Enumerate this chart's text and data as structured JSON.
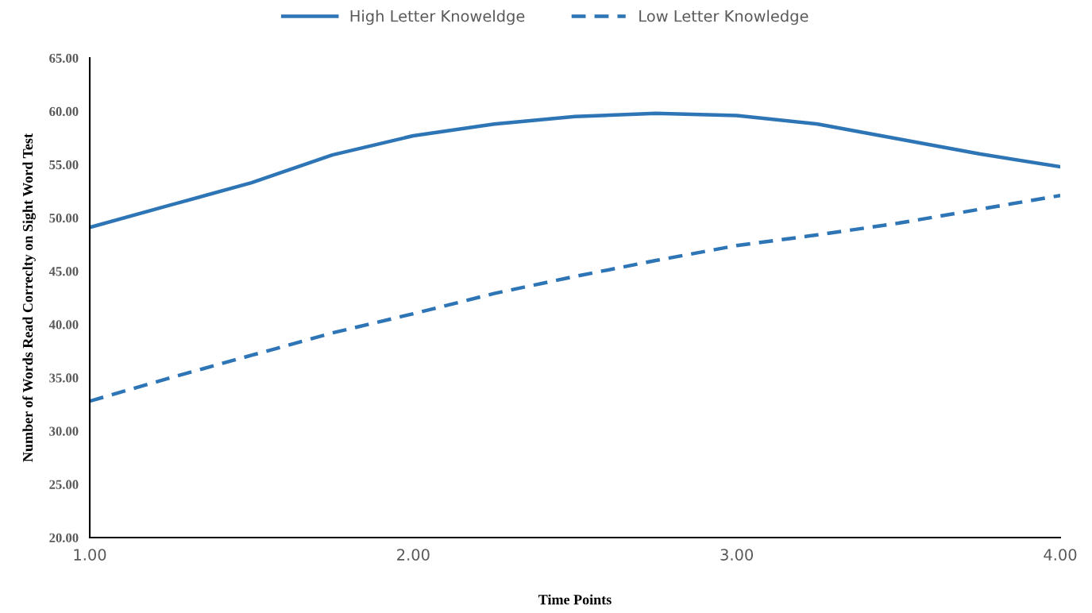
{
  "chart_data": {
    "type": "line",
    "xlabel": "Time Points",
    "ylabel": "Number of Words Read Correclty on Sight Word Test",
    "x": [
      1.0,
      1.25,
      1.5,
      1.75,
      2.0,
      2.25,
      2.5,
      2.75,
      3.0,
      3.25,
      3.5,
      3.75,
      4.0
    ],
    "series": [
      {
        "name": "High Letter Knoweldge",
        "color": "#2e75b6",
        "line_style": "solid",
        "values": [
          49.1,
          51.2,
          53.3,
          55.9,
          57.7,
          58.8,
          59.5,
          59.8,
          59.6,
          58.8,
          57.4,
          56.0,
          54.8
        ]
      },
      {
        "name": "Low Letter Knowledge",
        "color": "#2e75b6",
        "line_style": "dashed",
        "values": [
          32.8,
          35.0,
          37.1,
          39.2,
          41.0,
          42.9,
          44.5,
          46.0,
          47.4,
          48.4,
          49.5,
          50.8,
          52.1
        ]
      }
    ],
    "xlim": [
      1.0,
      4.0
    ],
    "xticks": [
      {
        "value": 1,
        "label": "1.00"
      },
      {
        "value": 2,
        "label": "2.00"
      },
      {
        "value": 3,
        "label": "3.00"
      },
      {
        "value": 4,
        "label": "4.00"
      }
    ],
    "ylim": [
      20,
      65
    ],
    "yticks": [
      {
        "value": 20,
        "label": "20.00"
      },
      {
        "value": 25,
        "label": "25.00"
      },
      {
        "value": 30,
        "label": "30.00"
      },
      {
        "value": 35,
        "label": "35.00"
      },
      {
        "value": 40,
        "label": "40.00"
      },
      {
        "value": 45,
        "label": "45.00"
      },
      {
        "value": 50,
        "label": "50.00"
      },
      {
        "value": 55,
        "label": "55.00"
      },
      {
        "value": 60,
        "label": "60.00"
      },
      {
        "value": 65,
        "label": "65.00"
      }
    ],
    "grid": false,
    "legend": "top",
    "marker": "none"
  }
}
